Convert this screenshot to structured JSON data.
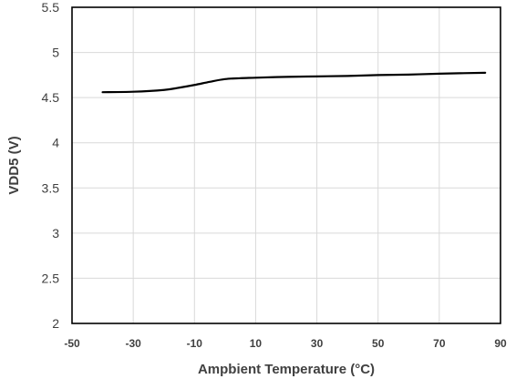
{
  "chart_data": {
    "type": "line",
    "title": "",
    "xlabel": "Ampbient Temperature (°C)",
    "ylabel": "VDD5 (V)",
    "xlim": [
      -50,
      90
    ],
    "ylim": [
      2,
      5.5
    ],
    "x_ticks": [
      -50,
      -30,
      -10,
      10,
      30,
      50,
      70,
      90
    ],
    "y_ticks": [
      2,
      2.5,
      3,
      3.5,
      4,
      4.5,
      5,
      5.5
    ],
    "y_tick_labels": [
      "2",
      "2.5",
      "3",
      "3.5",
      "4",
      "4.5",
      "5",
      "5.5"
    ],
    "grid": true,
    "legend": "none",
    "line_color": "#000000",
    "grid_color": "#d9d9d9",
    "series": [
      {
        "x": [
          -40,
          -30,
          -20,
          -15,
          -10,
          -5,
          0,
          5,
          10,
          20,
          30,
          40,
          50,
          60,
          70,
          85
        ],
        "values": [
          4.56,
          4.565,
          4.585,
          4.61,
          4.64,
          4.675,
          4.705,
          4.715,
          4.72,
          4.73,
          4.735,
          4.74,
          4.75,
          4.755,
          4.765,
          4.775
        ]
      }
    ]
  }
}
